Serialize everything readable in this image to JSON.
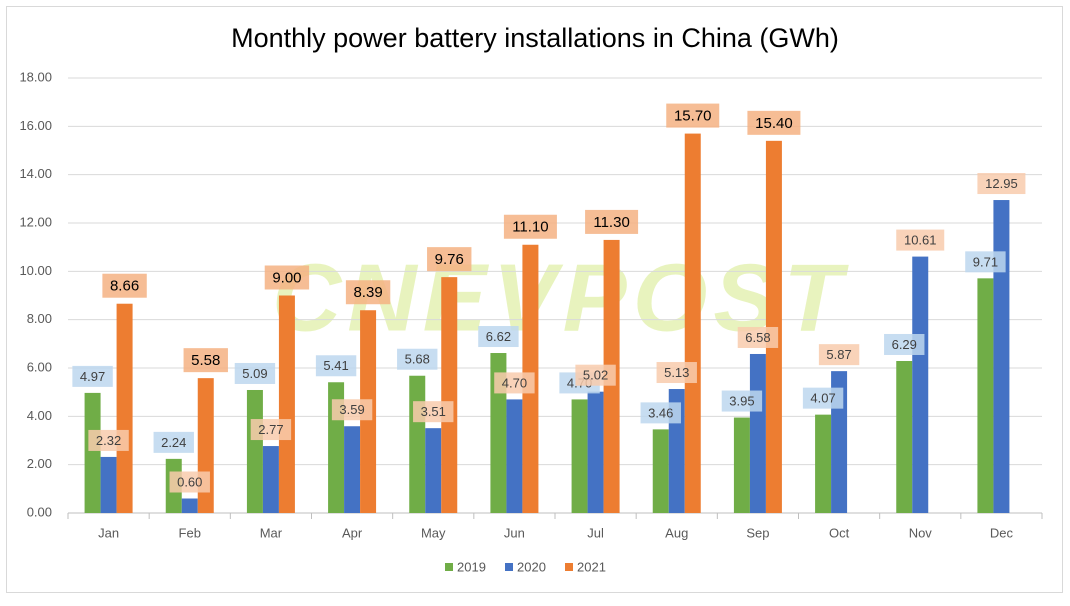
{
  "chart_data": {
    "type": "bar",
    "title": "Monthly power battery installations in China (GWh)",
    "watermark": "CNEVPOST",
    "categories": [
      "Jan",
      "Feb",
      "Mar",
      "Apr",
      "May",
      "Jun",
      "Jul",
      "Aug",
      "Sep",
      "Oct",
      "Nov",
      "Dec"
    ],
    "series": [
      {
        "name": "2019",
        "color": "#70ad47",
        "label_box": "#bdd7ee",
        "values": [
          4.97,
          2.24,
          5.09,
          5.41,
          5.68,
          6.62,
          4.7,
          3.46,
          3.95,
          4.07,
          6.29,
          9.71
        ],
        "value_labels": [
          "4.97",
          "2.24",
          "5.09",
          "5.41",
          "5.68",
          "6.62",
          "4.70",
          "3.46",
          "3.95",
          "4.07",
          "6.29",
          "9.71"
        ]
      },
      {
        "name": "2020",
        "color": "#4472c4",
        "label_box": "#f8cbad",
        "values": [
          2.32,
          0.6,
          2.77,
          3.59,
          3.51,
          4.7,
          5.02,
          5.13,
          6.58,
          5.87,
          10.61,
          12.95
        ],
        "value_labels": [
          "2.32",
          "0.60",
          "2.77",
          "3.59",
          "3.51",
          "4.70",
          "5.02",
          "5.13",
          "6.58",
          "5.87",
          "10.61",
          "12.95"
        ]
      },
      {
        "name": "2021",
        "color": "#ed7d31",
        "label_box": "#f4b183",
        "values": [
          8.66,
          5.58,
          9.0,
          8.39,
          9.76,
          11.1,
          11.3,
          15.7,
          15.4,
          null,
          null,
          null
        ],
        "value_labels": [
          "8.66",
          "5.58",
          "9.00",
          "8.39",
          "9.76",
          "11.10",
          "11.30",
          "15.70",
          "15.40",
          null,
          null,
          null
        ]
      }
    ],
    "ylim": [
      0,
      18
    ],
    "yticks": [
      {
        "value": 0,
        "label": "0.00"
      },
      {
        "value": 2,
        "label": "2.00"
      },
      {
        "value": 4,
        "label": "4.00"
      },
      {
        "value": 6,
        "label": "6.00"
      },
      {
        "value": 8,
        "label": "8.00"
      },
      {
        "value": 10,
        "label": "10.00"
      },
      {
        "value": 12,
        "label": "12.00"
      },
      {
        "value": 14,
        "label": "14.00"
      },
      {
        "value": 16,
        "label": "16.00"
      },
      {
        "value": 18,
        "label": "18.00"
      }
    ],
    "grid": true,
    "legend": "bottom"
  }
}
